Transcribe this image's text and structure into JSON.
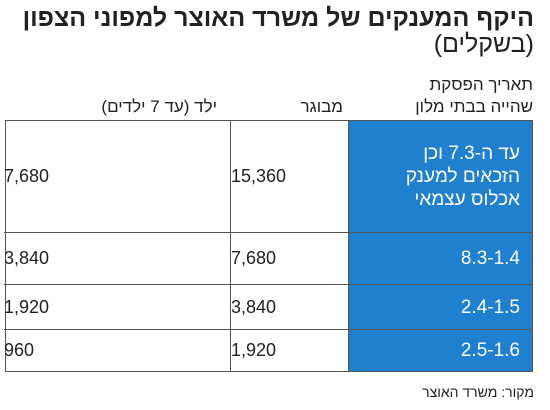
{
  "header": {
    "title": "היקף המענקים של משרד האוצר למפוני הצפון",
    "subtitle": "(בשקלים)"
  },
  "table": {
    "columns": [
      [
        "תאריך הפסקת",
        "שהייה בבתי מלון"
      ],
      "מבוגר",
      "ילד (עד 7 ילדים)"
    ],
    "rows": [
      [
        [
          "עד ה-7.3 וכן",
          "הזכאים למענק",
          "אכלוס עצמאי"
        ],
        "15,360",
        "7,680"
      ],
      [
        "8.3-1.4",
        "7,680",
        "3,840"
      ],
      [
        "2.4-1.5",
        "3,840",
        "1,920"
      ],
      [
        "2.5-1.6",
        "1,920",
        "960"
      ]
    ]
  },
  "source": "מקור: משרד האוצר"
}
